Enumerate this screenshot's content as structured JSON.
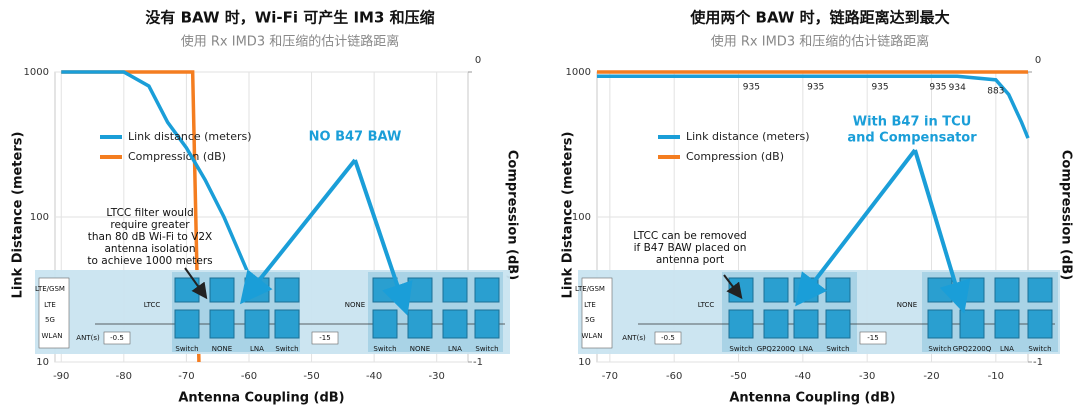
{
  "chart_data": [
    {
      "type": "line",
      "title": "没有 BAW 时，Wi-Fi 可产生 IM3 和压缩",
      "subtitle": "使用 Rx IMD3 和压缩的估计链路距离",
      "x_label": "Antenna Coupling (dB)",
      "y_label": "Link Distance (meters)",
      "y2_label": "Compression (dB)",
      "xlim": [
        -91,
        -25
      ],
      "xticks": [
        -90,
        -80,
        -70,
        -60,
        -50,
        -40,
        -30
      ],
      "ylim": [
        10,
        1000
      ],
      "yticks": [
        10,
        100,
        1000
      ],
      "log_y": true,
      "y2lim": [
        -1,
        0
      ],
      "y2ticks": [
        -1,
        0
      ],
      "grid": true,
      "series": [
        {
          "name": "Link distance (meters)",
          "color": "#1a9ed8",
          "x": [
            -90,
            -80,
            -76,
            -73,
            -70,
            -67,
            -64,
            -61,
            -58,
            -55
          ],
          "values": [
            1000,
            1000,
            800,
            450,
            300,
            180,
            100,
            50,
            25,
            12
          ]
        },
        {
          "name": "Compression (dB)",
          "color": "#f47d20",
          "axis": "y2",
          "x": [
            -90,
            -69,
            -68
          ],
          "values": [
            0,
            0,
            -1
          ]
        }
      ],
      "callout": [
        "NO B47 BAW"
      ],
      "note": [
        "LTCC filter would",
        "require greater",
        "than 80 dB Wi-Fi to V2X",
        "antenna isolation",
        "to achieve 1000 meters"
      ],
      "diagram": [
        "LTE/GSM",
        "LTE",
        "5G",
        "WLAN",
        "ANT(s)",
        "-0.5",
        "LTCC",
        "Switch",
        "NONE",
        "LNA",
        "Switch",
        "-15",
        "NONE",
        "Switch",
        "NONE",
        "LNA",
        "Switch"
      ]
    },
    {
      "type": "line",
      "title": "使用两个 BAW 时，链路距离达到最大",
      "subtitle": "使用 Rx IMD3 和压缩的估计链路距离",
      "x_label": "Antenna Coupling (dB)",
      "y_label": "Link Distance (meters)",
      "y2_label": "Compression (dB)",
      "xlim": [
        -72,
        -5
      ],
      "xticks": [
        -70,
        -60,
        -50,
        -40,
        -30,
        -20,
        -10
      ],
      "ylim": [
        10,
        1000
      ],
      "yticks": [
        10,
        100,
        1000
      ],
      "log_y": true,
      "y2lim": [
        -1,
        0
      ],
      "y2ticks": [
        -1,
        0
      ],
      "grid": true,
      "series": [
        {
          "name": "Link distance (meters)",
          "color": "#1a9ed8",
          "x": [
            -72,
            -48,
            -38,
            -28,
            -19,
            -16,
            -10,
            -8,
            -6,
            -5
          ],
          "values": [
            935,
            935,
            935,
            935,
            935,
            934,
            883,
            700,
            450,
            350
          ],
          "value_labels": [
            null,
            "935",
            "935",
            "935",
            "935",
            "934",
            "883",
            null,
            null,
            null
          ]
        },
        {
          "name": "Compression (dB)",
          "color": "#f47d20",
          "axis": "y2",
          "x": [
            -72,
            -5
          ],
          "values": [
            0,
            0
          ]
        }
      ],
      "callout": [
        "With B47 in TCU",
        "and Compensator"
      ],
      "note": [
        "LTCC can be removed",
        "if B47 BAW placed on",
        "antenna port"
      ],
      "diagram": [
        "LTE/GSM",
        "LTE",
        "5G",
        "WLAN",
        "ANT(s)",
        "-0.5",
        "LTCC",
        "Switch",
        "GPQ2200Q",
        "LNA",
        "Switch",
        "-15",
        "NONE",
        "Switch",
        "GPQ2200Q",
        "LNA",
        "Switch"
      ]
    }
  ]
}
